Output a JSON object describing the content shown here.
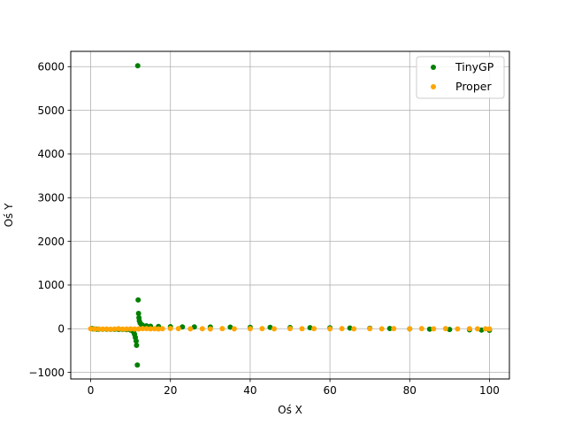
{
  "chart_data": {
    "type": "scatter",
    "title": "",
    "xlabel": "Oś X",
    "ylabel": "Oś Y",
    "xlim": [
      -5,
      105
    ],
    "ylim": [
      -1150,
      6350
    ],
    "xticks": [
      0,
      20,
      40,
      60,
      80,
      100
    ],
    "yticks": [
      -1000,
      0,
      1000,
      2000,
      3000,
      4000,
      5000,
      6000
    ],
    "grid": true,
    "legend_position": "top-right",
    "series": [
      {
        "name": "TinyGP",
        "color": "#008000",
        "points": [
          [
            0.2,
            5
          ],
          [
            0.5,
            -3
          ],
          [
            1,
            -8
          ],
          [
            1.5,
            -10
          ],
          [
            2,
            -12
          ],
          [
            3,
            -12
          ],
          [
            4,
            -13
          ],
          [
            5,
            -14
          ],
          [
            6,
            -15
          ],
          [
            7,
            -16
          ],
          [
            8,
            -18
          ],
          [
            9,
            -20
          ],
          [
            10,
            -30
          ],
          [
            10.5,
            -50
          ],
          [
            10.8,
            -80
          ],
          [
            11.0,
            -130
          ],
          [
            11.2,
            -200
          ],
          [
            11.4,
            -280
          ],
          [
            11.5,
            -380
          ],
          [
            11.7,
            -830
          ],
          [
            11.8,
            6020
          ],
          [
            11.9,
            660
          ],
          [
            12.0,
            350
          ],
          [
            12.1,
            250
          ],
          [
            12.2,
            180
          ],
          [
            12.4,
            130
          ],
          [
            12.7,
            100
          ],
          [
            13,
            80
          ],
          [
            14,
            65
          ],
          [
            15,
            55
          ],
          [
            17,
            50
          ],
          [
            20,
            45
          ],
          [
            23,
            42
          ],
          [
            26,
            40
          ],
          [
            30,
            38
          ],
          [
            35,
            35
          ],
          [
            40,
            32
          ],
          [
            45,
            30
          ],
          [
            50,
            27
          ],
          [
            55,
            24
          ],
          [
            60,
            20
          ],
          [
            65,
            15
          ],
          [
            70,
            10
          ],
          [
            75,
            5
          ],
          [
            80,
            -2
          ],
          [
            85,
            -10
          ],
          [
            90,
            -18
          ],
          [
            95,
            -25
          ],
          [
            98,
            -30
          ],
          [
            100,
            -35
          ]
        ]
      },
      {
        "name": "Proper",
        "color": "#ffa500",
        "points": [
          [
            0,
            0
          ],
          [
            1,
            -8
          ],
          [
            2,
            -5
          ],
          [
            3,
            -10
          ],
          [
            4,
            -6
          ],
          [
            5,
            -12
          ],
          [
            6,
            -8
          ],
          [
            7,
            0
          ],
          [
            8,
            -10
          ],
          [
            9,
            -6
          ],
          [
            10,
            -4
          ],
          [
            11,
            -8
          ],
          [
            12,
            -5
          ],
          [
            13,
            3
          ],
          [
            14,
            4
          ],
          [
            15,
            -2
          ],
          [
            16,
            0
          ],
          [
            17,
            -4
          ],
          [
            18,
            0
          ],
          [
            20,
            5
          ],
          [
            22,
            3
          ],
          [
            25,
            -2
          ],
          [
            28,
            0
          ],
          [
            30,
            -5
          ],
          [
            33,
            2
          ],
          [
            36,
            -3
          ],
          [
            40,
            0
          ],
          [
            43,
            3
          ],
          [
            46,
            -2
          ],
          [
            50,
            2
          ],
          [
            53,
            0
          ],
          [
            56,
            3
          ],
          [
            60,
            -2
          ],
          [
            63,
            2
          ],
          [
            66,
            -3
          ],
          [
            70,
            1
          ],
          [
            73,
            -2
          ],
          [
            76,
            4
          ],
          [
            80,
            -3
          ],
          [
            83,
            2
          ],
          [
            86,
            -2
          ],
          [
            89,
            3
          ],
          [
            92,
            -4
          ],
          [
            95,
            0
          ],
          [
            97,
            -2
          ],
          [
            99,
            -3
          ],
          [
            100,
            -4
          ]
        ]
      }
    ]
  }
}
